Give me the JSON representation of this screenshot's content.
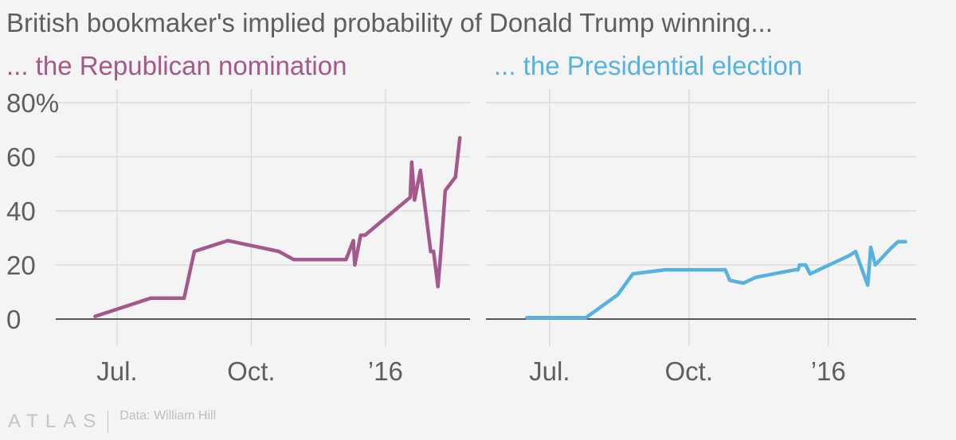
{
  "title": "British bookmaker's implied probability of Donald Trump winning...",
  "footer": {
    "logo": "ATLAS",
    "source": "Data: William Hill"
  },
  "colors": {
    "nomination": "#a4588b",
    "election": "#55b2e2",
    "grid": "#dcdcdc",
    "zero": "#222222",
    "text": "#5e5e5e"
  },
  "chart_data": [
    {
      "type": "line",
      "subtitle": "... the Republican nomination",
      "color": "#a4588b",
      "ylim": [
        -10,
        85
      ],
      "yticks": [
        {
          "value": 0,
          "label": "0"
        },
        {
          "value": 20,
          "label": "20"
        },
        {
          "value": 40,
          "label": "40"
        },
        {
          "value": 60,
          "label": "60"
        },
        {
          "value": 80,
          "label": "80%"
        }
      ],
      "xlim": [
        "2015-05-20",
        "2016-02-28"
      ],
      "xticks": [
        {
          "date": "2015-07-01",
          "label": "Jul."
        },
        {
          "date": "2015-10-01",
          "label": "Oct."
        },
        {
          "date": "2016-01-01",
          "label": "’16"
        }
      ],
      "series": [
        {
          "name": "Republican nomination",
          "points": [
            [
              "2015-06-16",
              1
            ],
            [
              "2015-07-24",
              7.7
            ],
            [
              "2015-08-16",
              7.7
            ],
            [
              "2015-08-23",
              25
            ],
            [
              "2015-09-15",
              29
            ],
            [
              "2015-10-20",
              25
            ],
            [
              "2015-10-30",
              22
            ],
            [
              "2015-12-05",
              22
            ],
            [
              "2015-12-10",
              29
            ],
            [
              "2015-12-11",
              20
            ],
            [
              "2015-12-15",
              31
            ],
            [
              "2015-12-18",
              31
            ],
            [
              "2016-01-18",
              45
            ],
            [
              "2016-01-19",
              58
            ],
            [
              "2016-01-21",
              44
            ],
            [
              "2016-01-25",
              55
            ],
            [
              "2016-02-01",
              25
            ],
            [
              "2016-02-03",
              25
            ],
            [
              "2016-02-06",
              12
            ],
            [
              "2016-02-08",
              25
            ],
            [
              "2016-02-11",
              47.5
            ],
            [
              "2016-02-18",
              52.5
            ],
            [
              "2016-02-21",
              67
            ]
          ]
        }
      ]
    },
    {
      "type": "line",
      "subtitle": "... the Presidential election",
      "color": "#55b2e2",
      "ylim": [
        -10,
        85
      ],
      "yticks": [
        {
          "value": 0,
          "label": "0"
        },
        {
          "value": 20,
          "label": "20"
        },
        {
          "value": 40,
          "label": "40"
        },
        {
          "value": 60,
          "label": "60"
        },
        {
          "value": 80,
          "label": "80%"
        }
      ],
      "xlim": [
        "2015-05-20",
        "2016-02-28"
      ],
      "xticks": [
        {
          "date": "2015-07-01",
          "label": "Jul."
        },
        {
          "date": "2015-10-01",
          "label": "Oct."
        },
        {
          "date": "2016-01-01",
          "label": "’16"
        }
      ],
      "series": [
        {
          "name": "Presidential election",
          "points": [
            [
              "2015-06-16",
              0.5
            ],
            [
              "2015-07-25",
              0.5
            ],
            [
              "2015-08-15",
              9
            ],
            [
              "2015-08-25",
              16.7
            ],
            [
              "2015-09-15",
              18.2
            ],
            [
              "2015-10-25",
              18.2
            ],
            [
              "2015-10-28",
              14.3
            ],
            [
              "2015-11-06",
              13.3
            ],
            [
              "2015-11-14",
              15.4
            ],
            [
              "2015-12-10",
              18.2
            ],
            [
              "2015-12-12",
              18.2
            ],
            [
              "2015-12-13",
              20
            ],
            [
              "2015-12-17",
              20
            ],
            [
              "2015-12-20",
              16.7
            ],
            [
              "2016-01-10",
              22.2
            ],
            [
              "2016-01-15",
              23.5
            ],
            [
              "2016-01-19",
              25
            ],
            [
              "2016-01-27",
              12.5
            ],
            [
              "2016-01-29",
              26.5
            ],
            [
              "2016-02-01",
              20
            ],
            [
              "2016-02-11",
              26
            ],
            [
              "2016-02-16",
              28.6
            ],
            [
              "2016-02-21",
              28.6
            ]
          ]
        }
      ]
    }
  ]
}
